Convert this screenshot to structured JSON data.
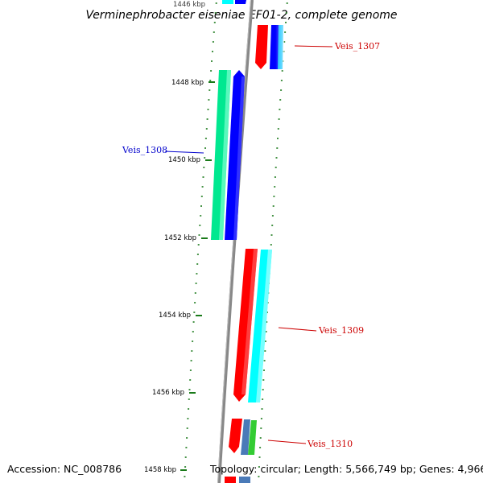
{
  "title": "Verminephrobacter eiseniae EF01-2, complete genome",
  "accession_text": "Accession: NC_008786",
  "topology_text": "Topology: circular; Length: 5,566,749 bp; Genes: 4,966",
  "ticks": [
    {
      "label": "1446 kbp"
    },
    {
      "label": "1448 kbp"
    },
    {
      "label": "1450 kbp"
    },
    {
      "label": "1452 kbp"
    },
    {
      "label": "1454 kbp"
    },
    {
      "label": "1456 kbp"
    },
    {
      "label": "1458 kbp"
    }
  ],
  "genes": [
    {
      "name": "Veis_1307",
      "color": "#cc0000"
    },
    {
      "name": "Veis_1308",
      "color": "#0000cc"
    },
    {
      "name": "Veis_1309",
      "color": "#cc0000"
    },
    {
      "name": "Veis_1310",
      "color": "#cc0000"
    }
  ],
  "colors": {
    "backbone": "#888888",
    "tick": "#1a7a1a",
    "feature_red": "#ff0000",
    "feature_blue": "#0000ff",
    "feature_cyan": "#00ffff",
    "feature_green": "#00e890",
    "feature_steel": "#4a7ab8",
    "feature_lime": "#33cc33"
  }
}
